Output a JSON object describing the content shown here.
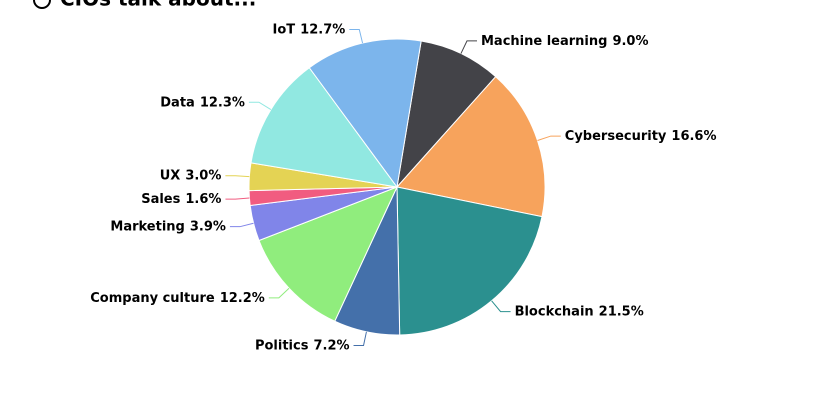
{
  "chart_data": {
    "type": "pie",
    "title": "CIOs talk about...",
    "categories": [
      "Machine learning",
      "Cybersecurity",
      "Blockchain",
      "Politics",
      "Company culture",
      "Marketing",
      "Sales",
      "UX",
      "Data",
      "IoT"
    ],
    "values": [
      9.0,
      16.6,
      21.5,
      7.2,
      12.2,
      3.9,
      1.6,
      3.0,
      12.3,
      12.7
    ],
    "value_labels": [
      "9.0%",
      "16.6%",
      "21.5%",
      "7.2%",
      "12.2%",
      "3.9%",
      "1.6%",
      "3.0%",
      "12.3%",
      "12.7%"
    ],
    "colors": [
      "#434348",
      "#f7a35c",
      "#2b908f",
      "#4470aa",
      "#90ed7d",
      "#8085e9",
      "#f15c80",
      "#e4d354",
      "#91e8e1",
      "#7cb5ec"
    ]
  }
}
